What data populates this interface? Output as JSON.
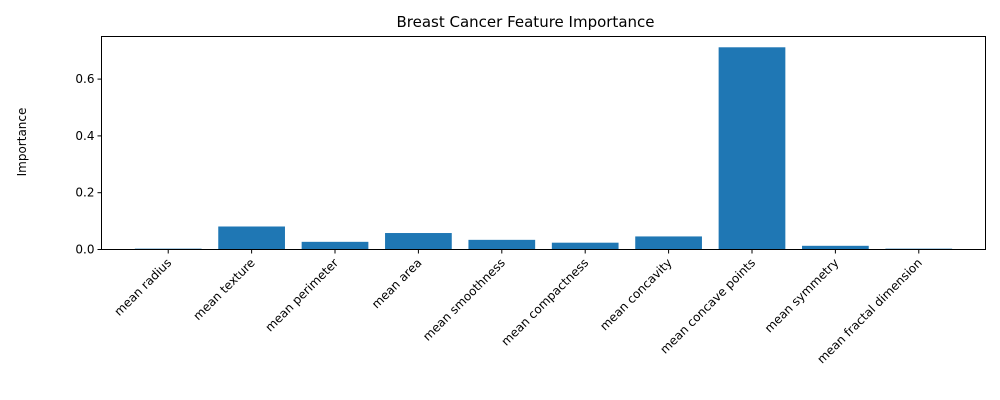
{
  "chart_data": {
    "type": "bar",
    "title": "Breast Cancer Feature Importance",
    "xlabel": "",
    "ylabel": "Importance",
    "categories": [
      "mean radius",
      "mean texture",
      "mean perimeter",
      "mean area",
      "mean smoothness",
      "mean compactness",
      "mean concavity",
      "mean concave points",
      "mean symmetry",
      "mean fractal dimension"
    ],
    "values": [
      0.003,
      0.081,
      0.027,
      0.058,
      0.034,
      0.024,
      0.046,
      0.712,
      0.013,
      0.003
    ],
    "ylim": [
      0,
      0.75
    ],
    "yticks": [
      "0.0",
      "0.2",
      "0.4",
      "0.6"
    ],
    "ytick_values": [
      0,
      0.2,
      0.4,
      0.6
    ],
    "grid": false,
    "bar_color": "#1f77b4"
  }
}
